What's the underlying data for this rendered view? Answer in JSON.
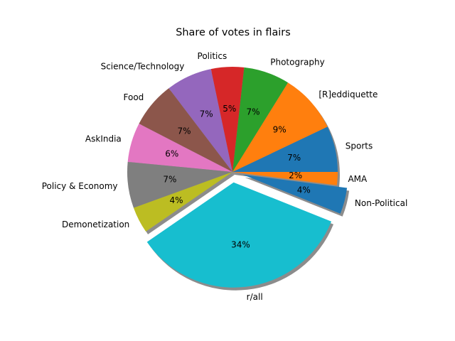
{
  "chart_data": {
    "type": "pie",
    "title": "Share of votes in flairs",
    "slices": [
      {
        "label": "Sports",
        "value": 7,
        "pct_label": "7%",
        "color": "#1f77b4",
        "explode": false
      },
      {
        "label": "[R]eddiquette",
        "value": 9,
        "pct_label": "9%",
        "color": "#ff7f0e",
        "explode": false
      },
      {
        "label": "Photography",
        "value": 7,
        "pct_label": "7%",
        "color": "#2ca02c",
        "explode": false
      },
      {
        "label": "Politics",
        "value": 5,
        "pct_label": "5%",
        "color": "#d62728",
        "explode": false
      },
      {
        "label": "Science/Technology",
        "value": 7,
        "pct_label": "7%",
        "color": "#9467bd",
        "explode": false
      },
      {
        "label": "Food",
        "value": 7,
        "pct_label": "7%",
        "color": "#8c564b",
        "explode": false
      },
      {
        "label": "AskIndia",
        "value": 6,
        "pct_label": "6%",
        "color": "#e377c2",
        "explode": false
      },
      {
        "label": "Policy & Economy",
        "value": 7,
        "pct_label": "7%",
        "color": "#7f7f7f",
        "explode": false
      },
      {
        "label": "Demonetization",
        "value": 4,
        "pct_label": "4%",
        "color": "#bcbd22",
        "explode": false
      },
      {
        "label": "r/all",
        "value": 34,
        "pct_label": "34%",
        "color": "#17becf",
        "explode": true
      },
      {
        "label": "Non-Political",
        "value": 4,
        "pct_label": "4%",
        "color": "#1f77b4",
        "explode": true
      },
      {
        "label": "AMA",
        "value": 2,
        "pct_label": "2%",
        "color": "#ff7f0e",
        "explode": false
      }
    ],
    "shadow": true,
    "legend": "none"
  }
}
